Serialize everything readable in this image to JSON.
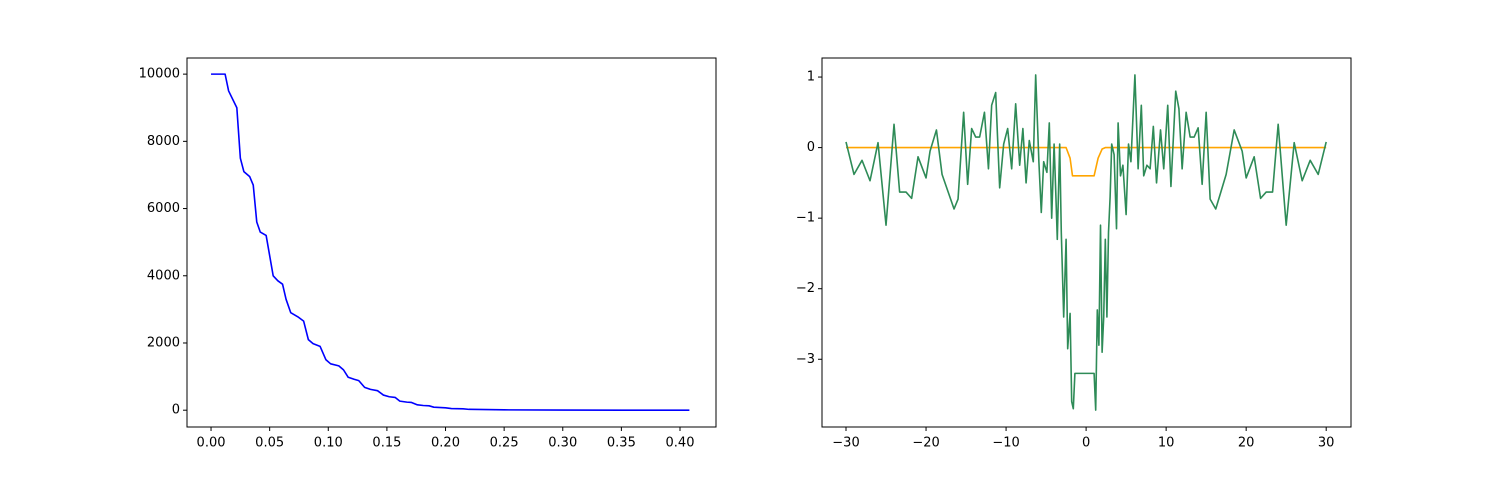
{
  "chart_data": [
    {
      "type": "line",
      "xlim": [
        -0.0205,
        0.4307
      ],
      "ylim": [
        -500,
        10480
      ],
      "xticks": [
        {
          "value": 0,
          "label": "0.00"
        },
        {
          "value": 0.05,
          "label": "0.05"
        },
        {
          "value": 0.1,
          "label": "0.10"
        },
        {
          "value": 0.15,
          "label": "0.15"
        },
        {
          "value": 0.2,
          "label": "0.20"
        },
        {
          "value": 0.25,
          "label": "0.25"
        },
        {
          "value": 0.3,
          "label": "0.30"
        },
        {
          "value": 0.35,
          "label": "0.35"
        },
        {
          "value": 0.4,
          "label": "0.40"
        }
      ],
      "yticks": [
        0,
        2000,
        4000,
        6000,
        8000,
        10000
      ],
      "grid": false,
      "series": [
        {
          "color": "#0000ff",
          "x": [
            0,
            0.012,
            0.015,
            0.022,
            0.025,
            0.028,
            0.033,
            0.036,
            0.039,
            0.042,
            0.047,
            0.05,
            0.053,
            0.057,
            0.061,
            0.064,
            0.068,
            0.074,
            0.079,
            0.083,
            0.087,
            0.093,
            0.098,
            0.102,
            0.109,
            0.113,
            0.117,
            0.122,
            0.126,
            0.131,
            0.136,
            0.142,
            0.147,
            0.152,
            0.157,
            0.161,
            0.167,
            0.171,
            0.176,
            0.181,
            0.186,
            0.19,
            0.2,
            0.205,
            0.215,
            0.22,
            0.25,
            0.3,
            0.35,
            0.408
          ],
          "values": [
            10000,
            10000,
            9500,
            9000,
            7500,
            7100,
            6950,
            6700,
            5600,
            5300,
            5200,
            4600,
            4000,
            3850,
            3750,
            3300,
            2900,
            2780,
            2650,
            2100,
            1980,
            1900,
            1500,
            1380,
            1320,
            1200,
            980,
            920,
            880,
            680,
            620,
            580,
            450,
            400,
            380,
            270,
            240,
            230,
            160,
            140,
            130,
            90,
            70,
            50,
            40,
            25,
            10,
            3,
            1,
            0
          ]
        }
      ]
    },
    {
      "type": "line",
      "xlim": [
        -33,
        33.1
      ],
      "ylim": [
        -3.96,
        1.27
      ],
      "xticks": [
        {
          "value": -30,
          "label": "−30"
        },
        {
          "value": -20,
          "label": "−20"
        },
        {
          "value": -10,
          "label": "−10"
        },
        0,
        10,
        20,
        30
      ],
      "yticks": [
        {
          "value": -3,
          "label": "−3"
        },
        {
          "value": -2,
          "label": "−2"
        },
        {
          "value": -1,
          "label": "−1"
        },
        0,
        1
      ],
      "grid": false,
      "series": [
        {
          "color": "#ffa500",
          "x": [
            -30,
            -3,
            -2.5,
            -2,
            -1.7,
            1,
            1.5,
            2,
            2.4,
            30
          ],
          "values": [
            0,
            0,
            0,
            -0.15,
            -0.4,
            -0.4,
            -0.15,
            -0.02,
            0,
            0
          ]
        },
        {
          "color": "#2e8b57",
          "x": [
            -30,
            -29,
            -28,
            -27,
            -26,
            -25,
            -24,
            -23.3,
            -22.5,
            -21.8,
            -21,
            -20,
            -19.5,
            -18.7,
            -18,
            -16.5,
            -16,
            -15.3,
            -14.8,
            -14.3,
            -13.8,
            -13.3,
            -12.7,
            -12.2,
            -11.8,
            -11.3,
            -10.8,
            -10.3,
            -9.8,
            -9.3,
            -8.8,
            -8.3,
            -7.9,
            -7.5,
            -7.1,
            -6.6,
            -6.3,
            -5.9,
            -5.6,
            -5.3,
            -4.9,
            -4.6,
            -4.3,
            -4,
            -3.8,
            -3.6,
            -3.3,
            -3.1,
            -2.8,
            -2.5,
            -2.3,
            -2,
            -1.8,
            -1.6,
            -1.4,
            0,
            1,
            1.2,
            1.4,
            1.6,
            1.8,
            2,
            2.2,
            2.4,
            2.6,
            2.8,
            3,
            3.2,
            3.5,
            3.8,
            4,
            4.3,
            4.6,
            5,
            5.3,
            5.6,
            6.1,
            6.5,
            6.9,
            7.2,
            7.6,
            8,
            8.4,
            8.8,
            9.3,
            9.7,
            10.2,
            10.6,
            11.2,
            11.6,
            12,
            12.5,
            13,
            13.5,
            14,
            14.5,
            15,
            15.5,
            16.2,
            17.5,
            18.5,
            19.5,
            20,
            21,
            21.8,
            22.5,
            23.3,
            24,
            25,
            26,
            27,
            28,
            29,
            30
          ],
          "values": [
            0.08,
            -0.38,
            -0.18,
            -0.47,
            0.07,
            -1.1,
            0.33,
            -0.63,
            -0.63,
            -0.72,
            -0.13,
            -0.43,
            -0.05,
            0.25,
            -0.38,
            -0.87,
            -0.73,
            0.5,
            -0.52,
            0.27,
            0.15,
            0.15,
            0.5,
            -0.3,
            0.6,
            0.78,
            -0.57,
            0.05,
            0.27,
            -0.3,
            0.62,
            -0.25,
            0.27,
            -0.5,
            0.1,
            -0.2,
            1.03,
            -0.2,
            -0.92,
            -0.2,
            -0.35,
            0.35,
            -1.0,
            0.05,
            -0.6,
            -1.3,
            0.05,
            -1.2,
            -2.4,
            -1.3,
            -2.85,
            -2.35,
            -3.6,
            -3.7,
            -3.2,
            -3.2,
            -3.2,
            -3.72,
            -2.3,
            -2.8,
            -1.1,
            -2.9,
            -2.4,
            -1.3,
            -2.4,
            -1.2,
            -0.7,
            0.05,
            -0.1,
            -1.15,
            0.35,
            -0.4,
            -0.25,
            -0.95,
            0.05,
            -0.2,
            1.03,
            -0.3,
            0.6,
            -0.4,
            -0.25,
            -0.3,
            0.3,
            -0.5,
            0.25,
            -0.3,
            0.6,
            -0.55,
            0.8,
            0.55,
            -0.3,
            0.5,
            0.15,
            0.15,
            0.28,
            -0.52,
            0.5,
            -0.73,
            -0.87,
            -0.38,
            0.25,
            -0.05,
            -0.43,
            -0.13,
            -0.72,
            -0.63,
            -0.63,
            0.33,
            -1.1,
            0.07,
            -0.47,
            -0.18,
            -0.38,
            0.08
          ]
        }
      ]
    }
  ]
}
